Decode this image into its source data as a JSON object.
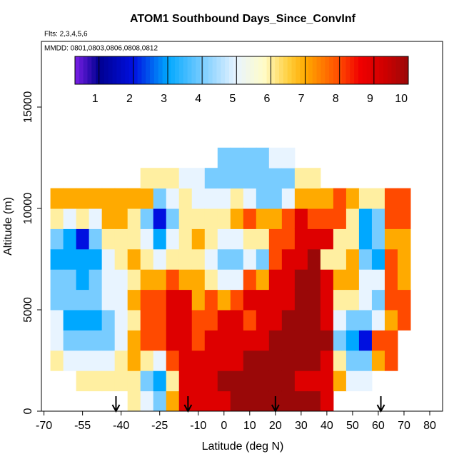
{
  "chart_data": {
    "type": "heatmap",
    "title": "ATOM1 Southbound Days_Since_ConvInf",
    "subtitle": "Flts: 2,3,4,5,6",
    "annotation": "MMDD: 0801,0803,0806,0808,0812",
    "x_label": "Latitude (deg N)",
    "y_label": "Altitude (m)",
    "xlim": [
      -71,
      85
    ],
    "ylim": [
      0,
      18240
    ],
    "xticks": [
      -70,
      -55,
      -40,
      -25,
      -10,
      0,
      10,
      20,
      30,
      40,
      50,
      60,
      70,
      80
    ],
    "yticks": [
      0,
      5000,
      10000,
      15000
    ],
    "x": [
      -65,
      -60,
      -55,
      -50,
      -45,
      -40,
      -35,
      -30,
      -25,
      -20,
      -15,
      -10,
      -5,
      0,
      5,
      10,
      15,
      20,
      25,
      30,
      35,
      40,
      45,
      50,
      55,
      60,
      65,
      70
    ],
    "y": [
      500,
      1500,
      2500,
      3500,
      4500,
      5500,
      6500,
      7500,
      8500,
      9500,
      10500,
      11500,
      12500
    ],
    "z": [
      [
        null,
        null,
        6,
        5,
        5,
        4,
        4,
        3,
        4,
        6,
        7,
        null,
        null
      ],
      [
        null,
        null,
        5,
        4,
        3,
        4,
        4,
        3,
        3,
        5,
        7,
        null,
        null
      ],
      [
        null,
        6,
        5,
        4,
        3,
        4,
        3,
        3,
        2,
        6,
        7,
        null,
        null
      ],
      [
        null,
        6,
        5,
        4,
        3,
        4,
        4,
        3,
        4,
        5,
        7,
        null,
        null
      ],
      [
        null,
        6,
        5,
        4,
        4,
        5,
        5,
        5,
        6,
        7,
        7,
        null,
        null
      ],
      [
        null,
        6,
        6,
        5,
        5,
        5,
        5,
        6,
        6,
        7,
        7,
        null,
        null
      ],
      [
        6,
        6,
        7,
        7,
        6,
        7,
        6,
        7,
        6,
        6,
        7,
        null,
        null
      ],
      [
        5,
        4,
        6,
        8,
        8,
        8,
        7,
        6,
        5,
        4,
        7,
        6,
        null
      ],
      [
        4,
        3,
        5,
        8,
        8,
        8,
        7,
        5,
        3,
        2,
        4,
        6,
        null
      ],
      [
        7,
        6,
        8,
        9,
        9,
        9,
        8,
        6,
        5,
        4,
        5,
        6,
        null
      ],
      [
        9,
        9,
        9,
        9,
        9,
        9,
        7,
        6,
        6,
        6,
        6,
        5,
        null
      ],
      [
        9,
        9,
        9,
        8,
        8,
        7,
        7,
        6,
        7,
        6,
        5,
        5,
        null
      ],
      [
        9,
        9,
        9,
        9,
        8,
        8,
        6,
        5,
        6,
        6,
        5,
        4,
        null
      ],
      [
        9,
        10,
        9,
        9,
        9,
        7,
        5,
        4,
        5,
        6,
        5,
        4,
        4
      ],
      [
        10,
        10,
        9,
        9,
        9,
        8,
        5,
        4,
        5,
        7,
        6,
        4,
        4
      ],
      [
        10,
        10,
        10,
        9,
        8,
        9,
        8,
        5,
        6,
        8,
        5,
        4,
        4
      ],
      [
        10,
        10,
        10,
        9,
        9,
        9,
        7,
        4,
        6,
        7,
        4,
        4,
        4
      ],
      [
        10,
        10,
        10,
        10,
        9,
        9,
        9,
        8,
        8,
        7,
        4,
        4,
        5
      ],
      [
        10,
        10,
        10,
        10,
        10,
        9,
        9,
        9,
        8,
        8,
        5,
        4,
        5
      ],
      [
        10,
        9,
        10,
        10,
        10,
        10,
        10,
        9,
        9,
        9,
        7,
        6,
        null
      ],
      [
        10,
        9,
        10,
        10,
        10,
        10,
        10,
        10,
        9,
        8,
        7,
        6,
        null
      ],
      [
        9,
        9,
        9,
        10,
        9,
        9,
        9,
        6,
        9,
        8,
        7,
        null,
        null
      ],
      [
        null,
        7,
        6,
        4,
        5,
        6,
        7,
        6,
        6,
        8,
        8,
        null,
        null
      ],
      [
        null,
        5,
        4,
        3,
        4,
        6,
        7,
        7,
        6,
        6,
        7,
        null,
        null
      ],
      [
        null,
        5,
        4,
        2,
        4,
        5,
        5,
        4,
        3,
        3,
        6,
        null,
        null
      ],
      [
        null,
        null,
        7,
        8,
        5,
        4,
        5,
        3,
        4,
        4,
        6,
        null,
        null
      ],
      [
        null,
        null,
        8,
        8,
        7,
        8,
        8,
        8,
        7,
        8,
        8,
        null,
        null
      ],
      [
        null,
        null,
        null,
        null,
        8,
        8,
        7,
        7,
        7,
        8,
        8,
        null,
        null
      ]
    ],
    "colorbar_lim": [
      0.3,
      10
    ],
    "colorbar_ticks": [
      1,
      2,
      3,
      4,
      5,
      6,
      7,
      8,
      9,
      10
    ],
    "colorscale": [
      [
        0.3,
        "#7b1fe6"
      ],
      [
        1,
        "#000090"
      ],
      [
        2,
        "#0010e0"
      ],
      [
        3,
        "#00a8ff"
      ],
      [
        4,
        "#78ccff"
      ],
      [
        5,
        "#e8f4ff"
      ],
      [
        5.8,
        "#fffcc8"
      ],
      [
        6.5,
        "#ffd040"
      ],
      [
        7,
        "#ffaa00"
      ],
      [
        8,
        "#ff4a00"
      ],
      [
        8.6,
        "#f00000"
      ],
      [
        9.3,
        "#d00000"
      ],
      [
        10,
        "#9a0808"
      ]
    ],
    "arrows_lat": [
      -42,
      -14,
      20,
      61
    ]
  }
}
